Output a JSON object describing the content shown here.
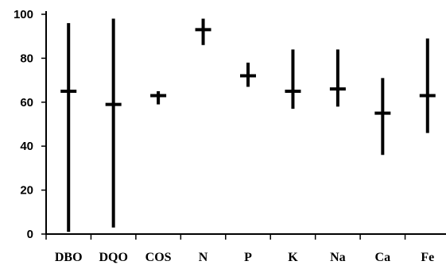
{
  "chart_data": {
    "type": "range",
    "categories": [
      "DBO",
      "DQO",
      "COS",
      "N",
      "P",
      "K",
      "Na",
      "Ca",
      "Fe"
    ],
    "series": [
      {
        "mean": [
          65,
          59,
          63,
          93,
          72,
          65,
          66,
          55,
          63
        ],
        "min": [
          1,
          3,
          59,
          86,
          67,
          57,
          58,
          36,
          46
        ],
        "max": [
          96,
          98,
          65,
          98,
          78,
          84,
          84,
          71,
          89
        ]
      }
    ],
    "y_ticks": [
      0,
      20,
      40,
      60,
      80,
      100
    ],
    "ylim": [
      0,
      100
    ],
    "grid": false,
    "legend": "none",
    "colors": {
      "marks": "#000000",
      "axes": "#000000",
      "background": "#ffffff"
    }
  }
}
